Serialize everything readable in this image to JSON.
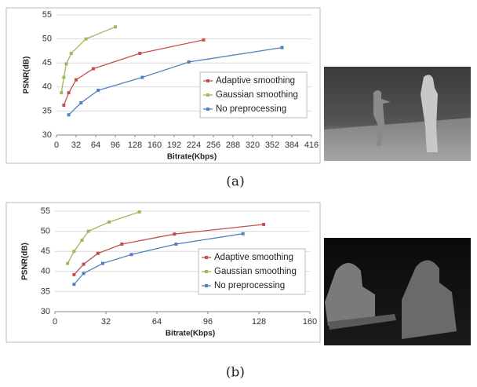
{
  "chart_data": [
    {
      "type": "line",
      "caption": "(a)",
      "x_label": "Bitrate(Kbps)",
      "y_label": "PSNR(dB)",
      "xlim": [
        0,
        416
      ],
      "xticks": [
        0,
        32,
        64,
        96,
        128,
        160,
        192,
        224,
        256,
        288,
        320,
        352,
        384,
        416
      ],
      "ylim": [
        30,
        55
      ],
      "yticks": [
        30,
        35,
        40,
        45,
        50,
        55
      ],
      "grid": true,
      "legend": "lower right",
      "series": [
        {
          "name": "Adaptive smoothing",
          "color": "#c0504d",
          "x": [
            12,
            20,
            32,
            60,
            136,
            240
          ],
          "values": [
            36.2,
            38.8,
            41.5,
            43.8,
            47,
            49.8
          ]
        },
        {
          "name": "Gaussian smoothing",
          "color": "#9bbb59",
          "x": [
            8,
            12,
            16,
            24,
            48,
            96
          ],
          "values": [
            38.8,
            42,
            44.8,
            47,
            50,
            52.5
          ]
        },
        {
          "name": "No preprocessing",
          "color": "#4f81bd",
          "x": [
            20,
            40,
            68,
            140,
            216,
            368
          ],
          "values": [
            34.2,
            36.7,
            39.3,
            42,
            45.2,
            48.2
          ]
        }
      ]
    },
    {
      "type": "line",
      "caption": "(b)",
      "x_label": "Bitrate(Kbps)",
      "y_label": "PSNR(dB)",
      "xlim": [
        0,
        160
      ],
      "xticks": [
        0,
        32,
        64,
        96,
        128,
        160
      ],
      "ylim": [
        30,
        55
      ],
      "yticks": [
        30,
        35,
        40,
        45,
        50,
        55
      ],
      "grid": true,
      "legend": "lower right",
      "series": [
        {
          "name": "Adaptive smoothing",
          "color": "#c0504d",
          "x": [
            12,
            18,
            27,
            42,
            75,
            131
          ],
          "values": [
            39.2,
            41.8,
            44.5,
            46.8,
            49.3,
            51.7
          ]
        },
        {
          "name": "Gaussian smoothing",
          "color": "#9bbb59",
          "x": [
            8,
            12,
            17,
            21,
            34,
            53
          ],
          "values": [
            42,
            45,
            47.8,
            50,
            52.3,
            54.8
          ]
        },
        {
          "name": "No preprocessing",
          "color": "#4f81bd",
          "x": [
            12,
            18,
            30,
            48,
            76,
            118
          ],
          "values": [
            36.8,
            39.5,
            42,
            44.2,
            46.8,
            49.4
          ]
        }
      ]
    }
  ]
}
